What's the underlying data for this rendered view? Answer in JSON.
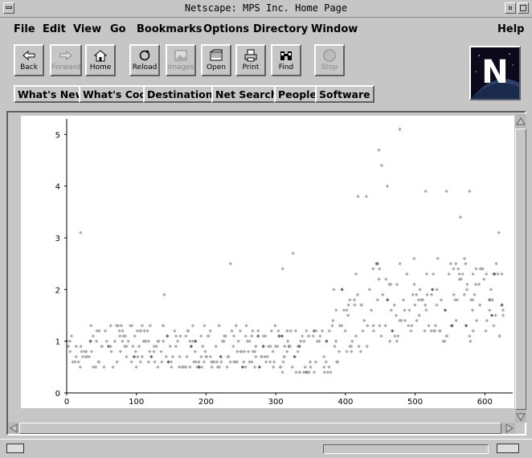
{
  "window": {
    "title": "Netscape: MPS Inc. Home Page"
  },
  "menubar": {
    "items": [
      "File",
      "Edit",
      "View",
      "Go",
      "Bookmarks",
      "Options",
      "Directory",
      "Window"
    ],
    "help": "Help"
  },
  "toolbar": {
    "buttons": [
      {
        "label": "Back",
        "icon": "back-arrow-icon",
        "enabled": true
      },
      {
        "label": "Forward",
        "icon": "forward-arrow-icon",
        "enabled": false
      },
      {
        "label": "Home",
        "icon": "home-icon",
        "enabled": true
      },
      {
        "label": "Reload",
        "icon": "reload-icon",
        "enabled": true
      },
      {
        "label": "Images",
        "icon": "images-icon",
        "enabled": false
      },
      {
        "label": "Open",
        "icon": "open-icon",
        "enabled": true
      },
      {
        "label": "Print",
        "icon": "printer-icon",
        "enabled": true
      },
      {
        "label": "Find",
        "icon": "binoculars-icon",
        "enabled": true
      },
      {
        "label": "Stop",
        "icon": "stop-icon",
        "enabled": false
      }
    ]
  },
  "logo": {
    "letter": "N"
  },
  "directory_buttons": [
    "What's New",
    "What's Cool",
    "Destinations",
    "Net Search",
    "People",
    "Software"
  ],
  "colors": {
    "chrome": "#c6c6c6",
    "point": "#aaaaaa",
    "point_dark": "#666666"
  },
  "chart_data": {
    "type": "scatter",
    "title": "",
    "xlabel": "",
    "ylabel": "",
    "xlim": [
      0,
      640
    ],
    "ylim": [
      0,
      5.3
    ],
    "x_ticks": [
      "0",
      "100",
      "200",
      "300",
      "400",
      "500",
      "600"
    ],
    "y_ticks": [
      "0",
      "1",
      "2",
      "3",
      "4",
      "5"
    ],
    "grid": false,
    "notable_points": [
      {
        "x": 20,
        "y": 3.1
      },
      {
        "x": 140,
        "y": 1.9
      },
      {
        "x": 235,
        "y": 2.5
      },
      {
        "x": 310,
        "y": 2.4
      },
      {
        "x": 325,
        "y": 2.7
      },
      {
        "x": 418,
        "y": 3.8
      },
      {
        "x": 430,
        "y": 3.8
      },
      {
        "x": 448,
        "y": 4.7
      },
      {
        "x": 452,
        "y": 4.4
      },
      {
        "x": 460,
        "y": 4.0
      },
      {
        "x": 478,
        "y": 5.1
      },
      {
        "x": 515,
        "y": 3.9
      },
      {
        "x": 545,
        "y": 3.9
      },
      {
        "x": 565,
        "y": 3.4
      },
      {
        "x": 578,
        "y": 3.9
      },
      {
        "x": 620,
        "y": 3.1
      }
    ]
  }
}
